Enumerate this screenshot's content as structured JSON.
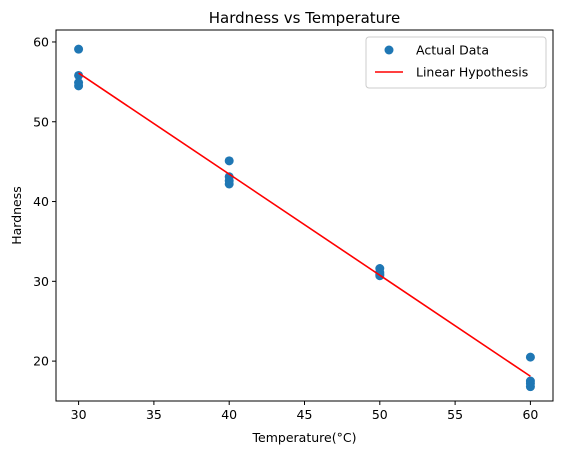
{
  "chart_data": {
    "type": "scatter",
    "title": "Hardness vs Temperature",
    "xlabel": "Temperature(°C)",
    "ylabel": "Hardness",
    "xlim": [
      28.5,
      61.5
    ],
    "ylim": [
      15,
      61.5
    ],
    "xticks": [
      30,
      35,
      40,
      45,
      50,
      55,
      60
    ],
    "yticks": [
      20,
      30,
      40,
      50,
      60
    ],
    "grid": false,
    "legend_position": "top-right",
    "colors": {
      "scatter": "#1f77b4",
      "line": "#ff0000",
      "axes": "#000000"
    },
    "series": [
      {
        "name": "Actual Data",
        "kind": "scatter",
        "x": [
          30,
          30,
          30,
          30,
          40,
          40,
          40,
          40,
          50,
          50,
          50,
          50,
          60,
          60,
          60,
          60
        ],
        "y": [
          59.1,
          55.8,
          54.9,
          54.5,
          45.1,
          43.1,
          42.6,
          42.2,
          31.6,
          31.1,
          30.9,
          30.7,
          20.5,
          17.5,
          17.2,
          16.8
        ]
      },
      {
        "name": "Linear Hypothesis",
        "kind": "line",
        "x": [
          30,
          60
        ],
        "y": [
          56.1,
          18.1
        ]
      }
    ]
  }
}
